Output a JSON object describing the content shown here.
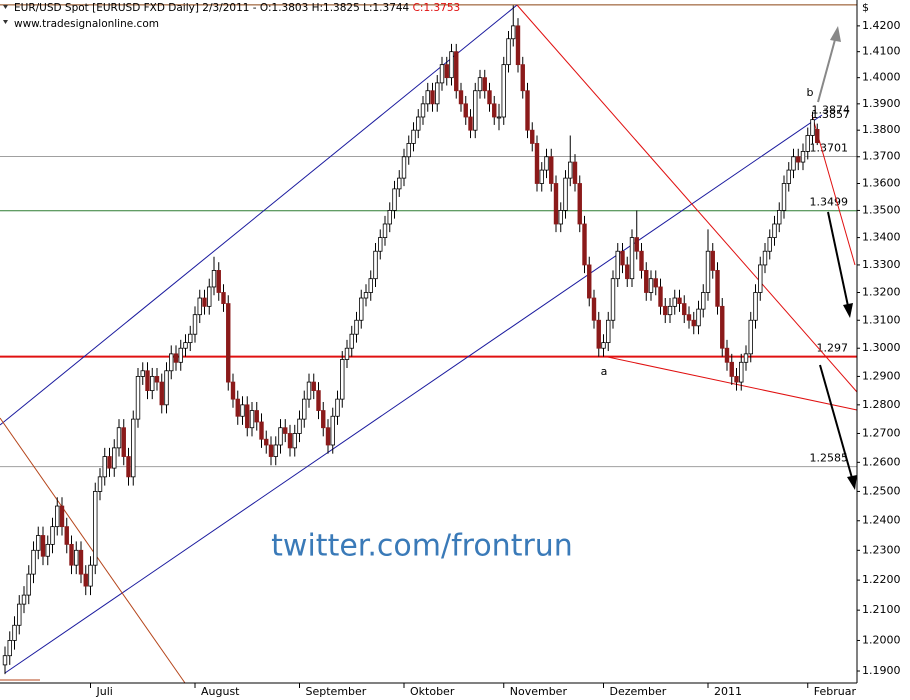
{
  "chart_data": {
    "type": "candlestick",
    "title": "EUR/USD Spot [EURUSD FXD  Daily] 2/3/2011 - O:1.3803 H:1.3825 L:1.3744",
    "title_close": "C:1.3753",
    "subtitle": "www.tradesignalonline.com",
    "axis_symbol": "$",
    "watermark": "twitter.com/frontrun",
    "annotations": [
      "a",
      "b"
    ],
    "log_scale": true,
    "up_color": "#ffffff",
    "down_color": "#8b1a1a",
    "ylim": [
      1.1861,
      1.4301
    ],
    "yticks": [
      {
        "value": 1.19,
        "label": "1.1900"
      },
      {
        "value": 1.2,
        "label": "1.2000"
      },
      {
        "value": 1.21,
        "label": "1.2100"
      },
      {
        "value": 1.22,
        "label": "1.2200"
      },
      {
        "value": 1.23,
        "label": "1.2300"
      },
      {
        "value": 1.24,
        "label": "1.2400"
      },
      {
        "value": 1.25,
        "label": "1.2500"
      },
      {
        "value": 1.26,
        "label": "1.2600"
      },
      {
        "value": 1.27,
        "label": "1.2700"
      },
      {
        "value": 1.28,
        "label": "1.2800"
      },
      {
        "value": 1.29,
        "label": "1.2900"
      },
      {
        "value": 1.3,
        "label": "1.3000"
      },
      {
        "value": 1.31,
        "label": "1.3100"
      },
      {
        "value": 1.32,
        "label": "1.3200"
      },
      {
        "value": 1.33,
        "label": "1.3300"
      },
      {
        "value": 1.34,
        "label": "1.3400"
      },
      {
        "value": 1.35,
        "label": "1.3500"
      },
      {
        "value": 1.36,
        "label": "1.3600"
      },
      {
        "value": 1.37,
        "label": "1.3700"
      },
      {
        "value": 1.38,
        "label": "1.3800"
      },
      {
        "value": 1.39,
        "label": "1.3900"
      },
      {
        "value": 1.4,
        "label": "1.4000"
      },
      {
        "value": 1.41,
        "label": "1.4100"
      },
      {
        "value": 1.42,
        "label": "1.4200"
      }
    ],
    "xticks": [
      {
        "value": 18,
        "label": "Juli"
      },
      {
        "value": 40,
        "label": "August"
      },
      {
        "value": 62,
        "label": "September"
      },
      {
        "value": 84,
        "label": "Oktober"
      },
      {
        "value": 105,
        "label": "November"
      },
      {
        "value": 126,
        "label": "Dezember"
      },
      {
        "value": 148,
        "label": "2011"
      },
      {
        "value": 169,
        "label": "Februar"
      }
    ],
    "levels": [
      {
        "value": 1.4282,
        "color": "#8b4513"
      },
      {
        "value": 1.3701,
        "color": "#a0a0a0"
      },
      {
        "value": 1.3499,
        "color": "#2e7d32"
      },
      {
        "value": 1.297,
        "color": "#e01010"
      },
      {
        "value": 1.2585,
        "color": "#a0a0a0"
      }
    ],
    "price_labels": [
      {
        "value": 1.3874,
        "color": "#e01010"
      },
      {
        "value": 1.3857,
        "color": "#e01010"
      }
    ],
    "ohlc": [
      [
        1.192,
        1.198,
        1.189,
        1.195
      ],
      [
        1.195,
        1.203,
        1.192,
        1.2
      ],
      [
        1.2,
        1.208,
        1.197,
        1.205
      ],
      [
        1.205,
        1.215,
        1.202,
        1.212
      ],
      [
        1.212,
        1.218,
        1.209,
        1.215
      ],
      [
        1.215,
        1.225,
        1.212,
        1.222
      ],
      [
        1.222,
        1.233,
        1.219,
        1.23
      ],
      [
        1.23,
        1.238,
        1.227,
        1.235
      ],
      [
        1.235,
        1.238,
        1.225,
        1.228
      ],
      [
        1.228,
        1.235,
        1.225,
        1.232
      ],
      [
        1.232,
        1.241,
        1.229,
        1.238
      ],
      [
        1.238,
        1.248,
        1.235,
        1.245
      ],
      [
        1.245,
        1.248,
        1.235,
        1.238
      ],
      [
        1.238,
        1.241,
        1.229,
        1.232
      ],
      [
        1.232,
        1.235,
        1.222,
        1.225
      ],
      [
        1.225,
        1.233,
        1.222,
        1.23
      ],
      [
        1.23,
        1.233,
        1.219,
        1.222
      ],
      [
        1.222,
        1.225,
        1.215,
        1.218
      ],
      [
        1.218,
        1.228,
        1.215,
        1.225
      ],
      [
        1.225,
        1.253,
        1.222,
        1.25
      ],
      [
        1.25,
        1.258,
        1.247,
        1.255
      ],
      [
        1.255,
        1.265,
        1.252,
        1.262
      ],
      [
        1.262,
        1.265,
        1.255,
        1.258
      ],
      [
        1.258,
        1.268,
        1.255,
        1.265
      ],
      [
        1.265,
        1.275,
        1.262,
        1.272
      ],
      [
        1.272,
        1.275,
        1.259,
        1.262
      ],
      [
        1.262,
        1.265,
        1.252,
        1.255
      ],
      [
        1.255,
        1.278,
        1.252,
        1.275
      ],
      [
        1.275,
        1.293,
        1.272,
        1.29
      ],
      [
        1.29,
        1.295,
        1.287,
        1.292
      ],
      [
        1.292,
        1.295,
        1.282,
        1.285
      ],
      [
        1.285,
        1.293,
        1.282,
        1.29
      ],
      [
        1.29,
        1.293,
        1.285,
        1.288
      ],
      [
        1.288,
        1.291,
        1.277,
        1.28
      ],
      [
        1.28,
        1.295,
        1.277,
        1.292
      ],
      [
        1.292,
        1.301,
        1.289,
        1.298
      ],
      [
        1.298,
        1.301,
        1.292,
        1.295
      ],
      [
        1.295,
        1.303,
        1.292,
        1.3
      ],
      [
        1.3,
        1.305,
        1.297,
        1.302
      ],
      [
        1.302,
        1.308,
        1.299,
        1.305
      ],
      [
        1.305,
        1.315,
        1.302,
        1.312
      ],
      [
        1.312,
        1.321,
        1.309,
        1.318
      ],
      [
        1.318,
        1.321,
        1.312,
        1.315
      ],
      [
        1.315,
        1.325,
        1.312,
        1.322
      ],
      [
        1.322,
        1.333,
        1.319,
        1.328
      ],
      [
        1.328,
        1.331,
        1.317,
        1.32
      ],
      [
        1.32,
        1.323,
        1.313,
        1.316
      ],
      [
        1.316,
        1.319,
        1.285,
        1.288
      ],
      [
        1.288,
        1.291,
        1.279,
        1.282
      ],
      [
        1.282,
        1.285,
        1.273,
        1.276
      ],
      [
        1.276,
        1.283,
        1.273,
        1.28
      ],
      [
        1.28,
        1.283,
        1.269,
        1.272
      ],
      [
        1.272,
        1.281,
        1.269,
        1.278
      ],
      [
        1.278,
        1.281,
        1.271,
        1.274
      ],
      [
        1.274,
        1.277,
        1.265,
        1.268
      ],
      [
        1.268,
        1.271,
        1.263,
        1.266
      ],
      [
        1.266,
        1.269,
        1.259,
        1.262
      ],
      [
        1.262,
        1.269,
        1.259,
        1.266
      ],
      [
        1.266,
        1.275,
        1.263,
        1.272
      ],
      [
        1.272,
        1.275,
        1.267,
        1.27
      ],
      [
        1.27,
        1.273,
        1.262,
        1.265
      ],
      [
        1.265,
        1.273,
        1.262,
        1.27
      ],
      [
        1.27,
        1.278,
        1.267,
        1.275
      ],
      [
        1.275,
        1.285,
        1.272,
        1.282
      ],
      [
        1.282,
        1.291,
        1.279,
        1.288
      ],
      [
        1.288,
        1.291,
        1.282,
        1.285
      ],
      [
        1.285,
        1.288,
        1.275,
        1.278
      ],
      [
        1.278,
        1.281,
        1.269,
        1.272
      ],
      [
        1.272,
        1.275,
        1.263,
        1.266
      ],
      [
        1.266,
        1.279,
        1.263,
        1.276
      ],
      [
        1.276,
        1.285,
        1.273,
        1.282
      ],
      [
        1.282,
        1.299,
        1.279,
        1.296
      ],
      [
        1.296,
        1.303,
        1.293,
        1.3
      ],
      [
        1.3,
        1.308,
        1.297,
        1.305
      ],
      [
        1.305,
        1.313,
        1.302,
        1.31
      ],
      [
        1.31,
        1.321,
        1.307,
        1.318
      ],
      [
        1.318,
        1.323,
        1.315,
        1.32
      ],
      [
        1.32,
        1.328,
        1.317,
        1.325
      ],
      [
        1.325,
        1.338,
        1.322,
        1.335
      ],
      [
        1.335,
        1.343,
        1.332,
        1.34
      ],
      [
        1.34,
        1.348,
        1.337,
        1.345
      ],
      [
        1.345,
        1.353,
        1.342,
        1.35
      ],
      [
        1.35,
        1.361,
        1.347,
        1.358
      ],
      [
        1.358,
        1.365,
        1.355,
        1.362
      ],
      [
        1.362,
        1.373,
        1.359,
        1.37
      ],
      [
        1.37,
        1.378,
        1.367,
        1.375
      ],
      [
        1.375,
        1.383,
        1.372,
        1.38
      ],
      [
        1.38,
        1.388,
        1.377,
        1.385
      ],
      [
        1.385,
        1.393,
        1.382,
        1.39
      ],
      [
        1.39,
        1.398,
        1.387,
        1.395
      ],
      [
        1.395,
        1.398,
        1.387,
        1.39
      ],
      [
        1.39,
        1.401,
        1.387,
        1.398
      ],
      [
        1.398,
        1.408,
        1.395,
        1.405
      ],
      [
        1.405,
        1.408,
        1.397,
        1.4
      ],
      [
        1.4,
        1.413,
        1.397,
        1.41
      ],
      [
        1.41,
        1.413,
        1.392,
        1.395
      ],
      [
        1.395,
        1.398,
        1.387,
        1.39
      ],
      [
        1.39,
        1.393,
        1.382,
        1.385
      ],
      [
        1.385,
        1.388,
        1.377,
        1.38
      ],
      [
        1.38,
        1.398,
        1.377,
        1.395
      ],
      [
        1.395,
        1.403,
        1.392,
        1.4
      ],
      [
        1.4,
        1.403,
        1.392,
        1.395
      ],
      [
        1.395,
        1.398,
        1.387,
        1.39
      ],
      [
        1.39,
        1.393,
        1.382,
        1.385
      ],
      [
        1.385,
        1.39,
        1.38,
        1.385
      ],
      [
        1.385,
        1.408,
        1.382,
        1.405
      ],
      [
        1.405,
        1.418,
        1.402,
        1.415
      ],
      [
        1.415,
        1.428,
        1.412,
        1.42
      ],
      [
        1.42,
        1.423,
        1.402,
        1.405
      ],
      [
        1.405,
        1.408,
        1.392,
        1.395
      ],
      [
        1.395,
        1.398,
        1.377,
        1.38
      ],
      [
        1.38,
        1.383,
        1.372,
        1.375
      ],
      [
        1.375,
        1.378,
        1.357,
        1.36
      ],
      [
        1.36,
        1.368,
        1.357,
        1.365
      ],
      [
        1.365,
        1.373,
        1.362,
        1.37
      ],
      [
        1.37,
        1.373,
        1.357,
        1.36
      ],
      [
        1.36,
        1.363,
        1.342,
        1.345
      ],
      [
        1.345,
        1.353,
        1.342,
        1.35
      ],
      [
        1.35,
        1.365,
        1.347,
        1.362
      ],
      [
        1.362,
        1.378,
        1.359,
        1.368
      ],
      [
        1.368,
        1.371,
        1.357,
        1.36
      ],
      [
        1.36,
        1.363,
        1.342,
        1.345
      ],
      [
        1.345,
        1.348,
        1.327,
        1.33
      ],
      [
        1.33,
        1.333,
        1.315,
        1.318
      ],
      [
        1.318,
        1.321,
        1.307,
        1.31
      ],
      [
        1.31,
        1.313,
        1.297,
        1.3
      ],
      [
        1.3,
        1.305,
        1.297,
        1.302
      ],
      [
        1.302,
        1.313,
        1.299,
        1.31
      ],
      [
        1.31,
        1.328,
        1.307,
        1.325
      ],
      [
        1.325,
        1.338,
        1.322,
        1.335
      ],
      [
        1.335,
        1.338,
        1.327,
        1.33
      ],
      [
        1.33,
        1.333,
        1.322,
        1.325
      ],
      [
        1.325,
        1.343,
        1.322,
        1.34
      ],
      [
        1.34,
        1.35,
        1.332,
        1.335
      ],
      [
        1.335,
        1.338,
        1.325,
        1.328
      ],
      [
        1.328,
        1.331,
        1.317,
        1.32
      ],
      [
        1.32,
        1.328,
        1.317,
        1.325
      ],
      [
        1.325,
        1.328,
        1.319,
        1.322
      ],
      [
        1.322,
        1.325,
        1.312,
        1.315
      ],
      [
        1.315,
        1.318,
        1.309,
        1.312
      ],
      [
        1.312,
        1.318,
        1.309,
        1.315
      ],
      [
        1.315,
        1.321,
        1.312,
        1.318
      ],
      [
        1.318,
        1.321,
        1.313,
        1.316
      ],
      [
        1.316,
        1.319,
        1.309,
        1.312
      ],
      [
        1.312,
        1.315,
        1.307,
        1.31
      ],
      [
        1.31,
        1.313,
        1.305,
        1.308
      ],
      [
        1.308,
        1.317,
        1.305,
        1.314
      ],
      [
        1.314,
        1.323,
        1.311,
        1.32
      ],
      [
        1.32,
        1.343,
        1.317,
        1.335
      ],
      [
        1.335,
        1.338,
        1.325,
        1.328
      ],
      [
        1.328,
        1.331,
        1.312,
        1.315
      ],
      [
        1.315,
        1.318,
        1.297,
        1.3
      ],
      [
        1.3,
        1.303,
        1.292,
        1.295
      ],
      [
        1.295,
        1.298,
        1.287,
        1.29
      ],
      [
        1.29,
        1.293,
        1.285,
        1.288
      ],
      [
        1.288,
        1.298,
        1.285,
        1.295
      ],
      [
        1.295,
        1.301,
        1.292,
        1.298
      ],
      [
        1.298,
        1.313,
        1.295,
        1.31
      ],
      [
        1.31,
        1.323,
        1.307,
        1.32
      ],
      [
        1.32,
        1.333,
        1.317,
        1.33
      ],
      [
        1.33,
        1.338,
        1.327,
        1.335
      ],
      [
        1.335,
        1.343,
        1.332,
        1.34
      ],
      [
        1.34,
        1.348,
        1.337,
        1.345
      ],
      [
        1.345,
        1.353,
        1.342,
        1.35
      ],
      [
        1.35,
        1.363,
        1.347,
        1.36
      ],
      [
        1.36,
        1.368,
        1.357,
        1.365
      ],
      [
        1.365,
        1.373,
        1.362,
        1.37
      ],
      [
        1.37,
        1.373,
        1.365,
        1.368
      ],
      [
        1.368,
        1.375,
        1.365,
        1.372
      ],
      [
        1.372,
        1.381,
        1.369,
        1.378
      ],
      [
        1.378,
        1.387,
        1.375,
        1.384
      ],
      [
        1.3803,
        1.3825,
        1.3744,
        1.3753
      ]
    ]
  }
}
